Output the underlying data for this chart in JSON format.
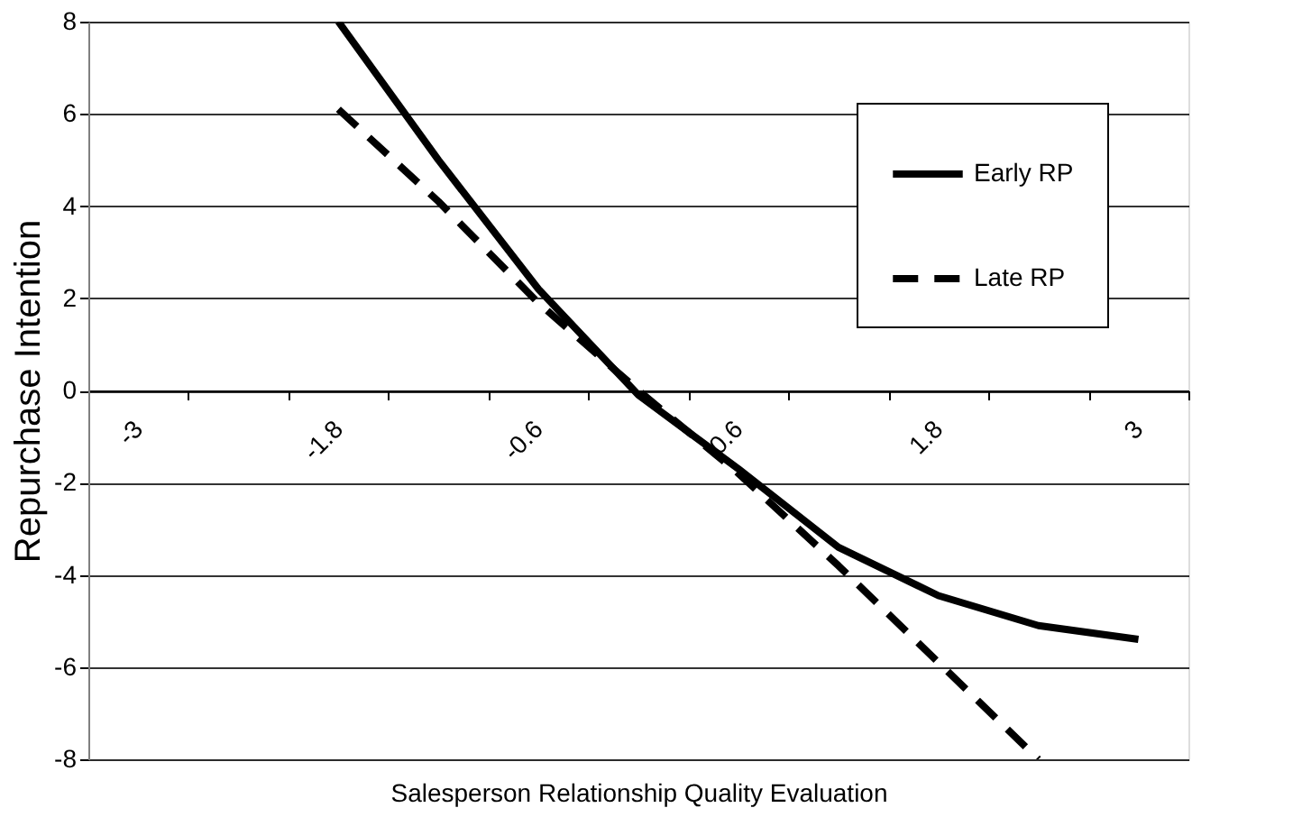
{
  "chart_data": {
    "type": "line",
    "xlabel": "Salesperson Relationship Quality Evaluation",
    "ylabel": "Repurchase Intention",
    "categories": [
      "-3",
      null,
      "-1.8",
      null,
      "-0.6",
      null,
      "0.6",
      null,
      "1.8",
      null,
      "3"
    ],
    "series": [
      {
        "name": "Early RP",
        "color": "#000000",
        "line_style": "solid",
        "values": [
          null,
          null,
          8.0,
          5.0,
          2.2,
          -0.1,
          -1.7,
          -3.4,
          -4.45,
          -5.1,
          -5.4
        ]
      },
      {
        "name": "Late RP",
        "color": "#000000",
        "line_style": "dashed",
        "values": [
          null,
          null,
          6.1,
          4.1,
          1.9,
          0.0,
          -1.8,
          -3.8,
          -5.9,
          -8.0,
          null
        ]
      }
    ],
    "ylim": [
      -8,
      8
    ],
    "yticks": [
      -8,
      -6,
      -4,
      -2,
      0,
      2,
      4,
      6,
      8
    ],
    "grid": "y",
    "legend": "top right",
    "marker": "none"
  }
}
